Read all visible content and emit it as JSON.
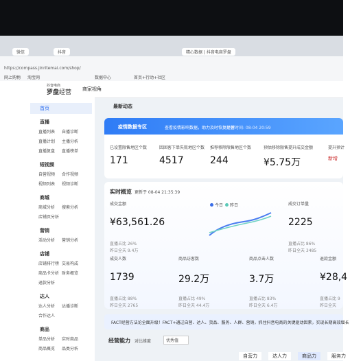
{
  "browser": {
    "tabs": [
      "微信",
      "抖音",
      "精心数据 | 抖音电商罗盘"
    ],
    "url": "https://compass.jinritemai.com/shop/",
    "bookmarks": [
      "网上购物",
      "淘宝网",
      "数据中心",
      "首页+行动+社区"
    ]
  },
  "app": {
    "brand": "抖音电商",
    "logo": "罗盘",
    "product": "经营",
    "view": "商家视角"
  },
  "sidebar": {
    "home": "首页",
    "groups": [
      {
        "title": "直播",
        "items": [
          "直播列表",
          "自播诊断",
          "直播计划",
          "主播分析",
          "直播复盘",
          "直播榜单"
        ]
      },
      {
        "title": "短视频",
        "items": [
          "自营视频",
          "合作视频",
          "视频列表",
          "视频诊断"
        ]
      },
      {
        "title": "商城",
        "items": [
          "商城分析",
          "搜索分析",
          "店铺页分析"
        ]
      },
      {
        "title": "营销",
        "items": [
          "活动分析",
          "营销分析"
        ]
      },
      {
        "title": "店铺",
        "items": [
          "店铺排行榜",
          "交易构成",
          "商品卡分析",
          "财务概览",
          "退款分析"
        ]
      },
      {
        "title": "达人",
        "items": [
          "达人分析",
          "达播诊断",
          "合作达人"
        ]
      },
      {
        "title": "商品",
        "items": [
          "单品分析",
          "实时商品",
          "商品概览",
          "品类分析"
        ]
      }
    ]
  },
  "news": {
    "title": "最新动态"
  },
  "epidemic": {
    "title": "疫情数据专区",
    "subtitle": "查看疫情影响数据，助力及时恢复经营",
    "updated": "更新时间: 08-04 20:59",
    "metrics": [
      {
        "label": "已设置限售地区个数",
        "value": "171"
      },
      {
        "label": "因困客下单失败地区个数",
        "value": "4517"
      },
      {
        "label": "推荐移除限售地区个数",
        "value": "244"
      },
      {
        "label": "预估移除限售提升成交金额",
        "value": "¥5.75万"
      },
      {
        "label": "提升预计",
        "value": "新增"
      }
    ]
  },
  "realtime": {
    "title": "实时概览",
    "updated": "更新于 08-04 21:35:39",
    "legend": [
      "今日",
      "昨日"
    ],
    "metrics": [
      {
        "label": "成交金额",
        "value": "¥63,561.26",
        "share": "直播占比 26%",
        "yesterday": "昨日全天 9.4万"
      },
      {
        "label": "成交订单量",
        "value": "2225",
        "share": "直播占比 86%",
        "yesterday": "昨日全天 3485"
      },
      {
        "label": "成交人数",
        "value": "1739",
        "share": "直播占比 88%",
        "yesterday": "昨日全天 2765"
      },
      {
        "label": "商品访客数",
        "value": "29.2万",
        "share": "直播占比 49%",
        "yesterday": "昨日全天 44.4万"
      },
      {
        "label": "商品点击人数",
        "value": "3.7万",
        "share": "直播占比 83%",
        "yesterday": "昨日全天 6.4万"
      },
      {
        "label": "退款金额",
        "value": "¥28,4",
        "share": "直播占比 9",
        "yesterday": "昨日全天"
      }
    ]
  },
  "banner": "FACT经营方法论全面升级！FACT+通过自营、达人、货品、服务、人群、营销，抓住抖音电商的关键驱动因素，实现长期高效增长",
  "ability": {
    "title": "经营能力",
    "compare": "对比维度",
    "option": "优秀值",
    "tabs": [
      "自营力",
      "达人力",
      "商品力",
      "服务力"
    ]
  }
}
